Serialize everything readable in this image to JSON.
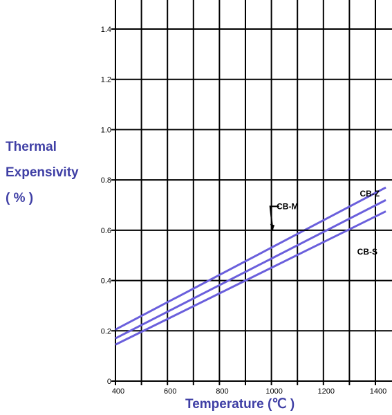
{
  "chart_data": {
    "type": "line",
    "title": "",
    "xlabel": "Temperature (℃ )",
    "ylabel": [
      "Thermal",
      "Expensivity",
      "( % )"
    ],
    "xlim": [
      400,
      1450
    ],
    "ylim": [
      0,
      1.5
    ],
    "x_ticks": [
      400,
      600,
      800,
      1000,
      1200,
      1400
    ],
    "x_tick_labels": [
      "400",
      "600",
      "800",
      "1000",
      "1200",
      "1400"
    ],
    "y_ticks": [
      0,
      0.2,
      0.4,
      0.6,
      0.8,
      1.0,
      1.2,
      1.4
    ],
    "y_tick_labels": [
      "0",
      "0.2",
      "0.4",
      "0.6",
      "0.8",
      "1.0",
      "1.2",
      "1.4"
    ],
    "grid": true,
    "line_color": "#6a5fdc",
    "series": [
      {
        "name": "CB-Z",
        "x": [
          400,
          1440
        ],
        "y": [
          0.205,
          0.77
        ]
      },
      {
        "name": "CB-M",
        "x": [
          400,
          1440
        ],
        "y": [
          0.17,
          0.72
        ]
      },
      {
        "name": "CB-S",
        "x": [
          400,
          1440
        ],
        "y": [
          0.145,
          0.675
        ]
      }
    ],
    "annotations": [
      {
        "text": "CB-Z",
        "x": 1340,
        "y": 0.745
      },
      {
        "text": "CB-M",
        "x": 1020,
        "y": 0.695
      },
      {
        "text": "CB-S",
        "x": 1330,
        "y": 0.515
      }
    ]
  }
}
